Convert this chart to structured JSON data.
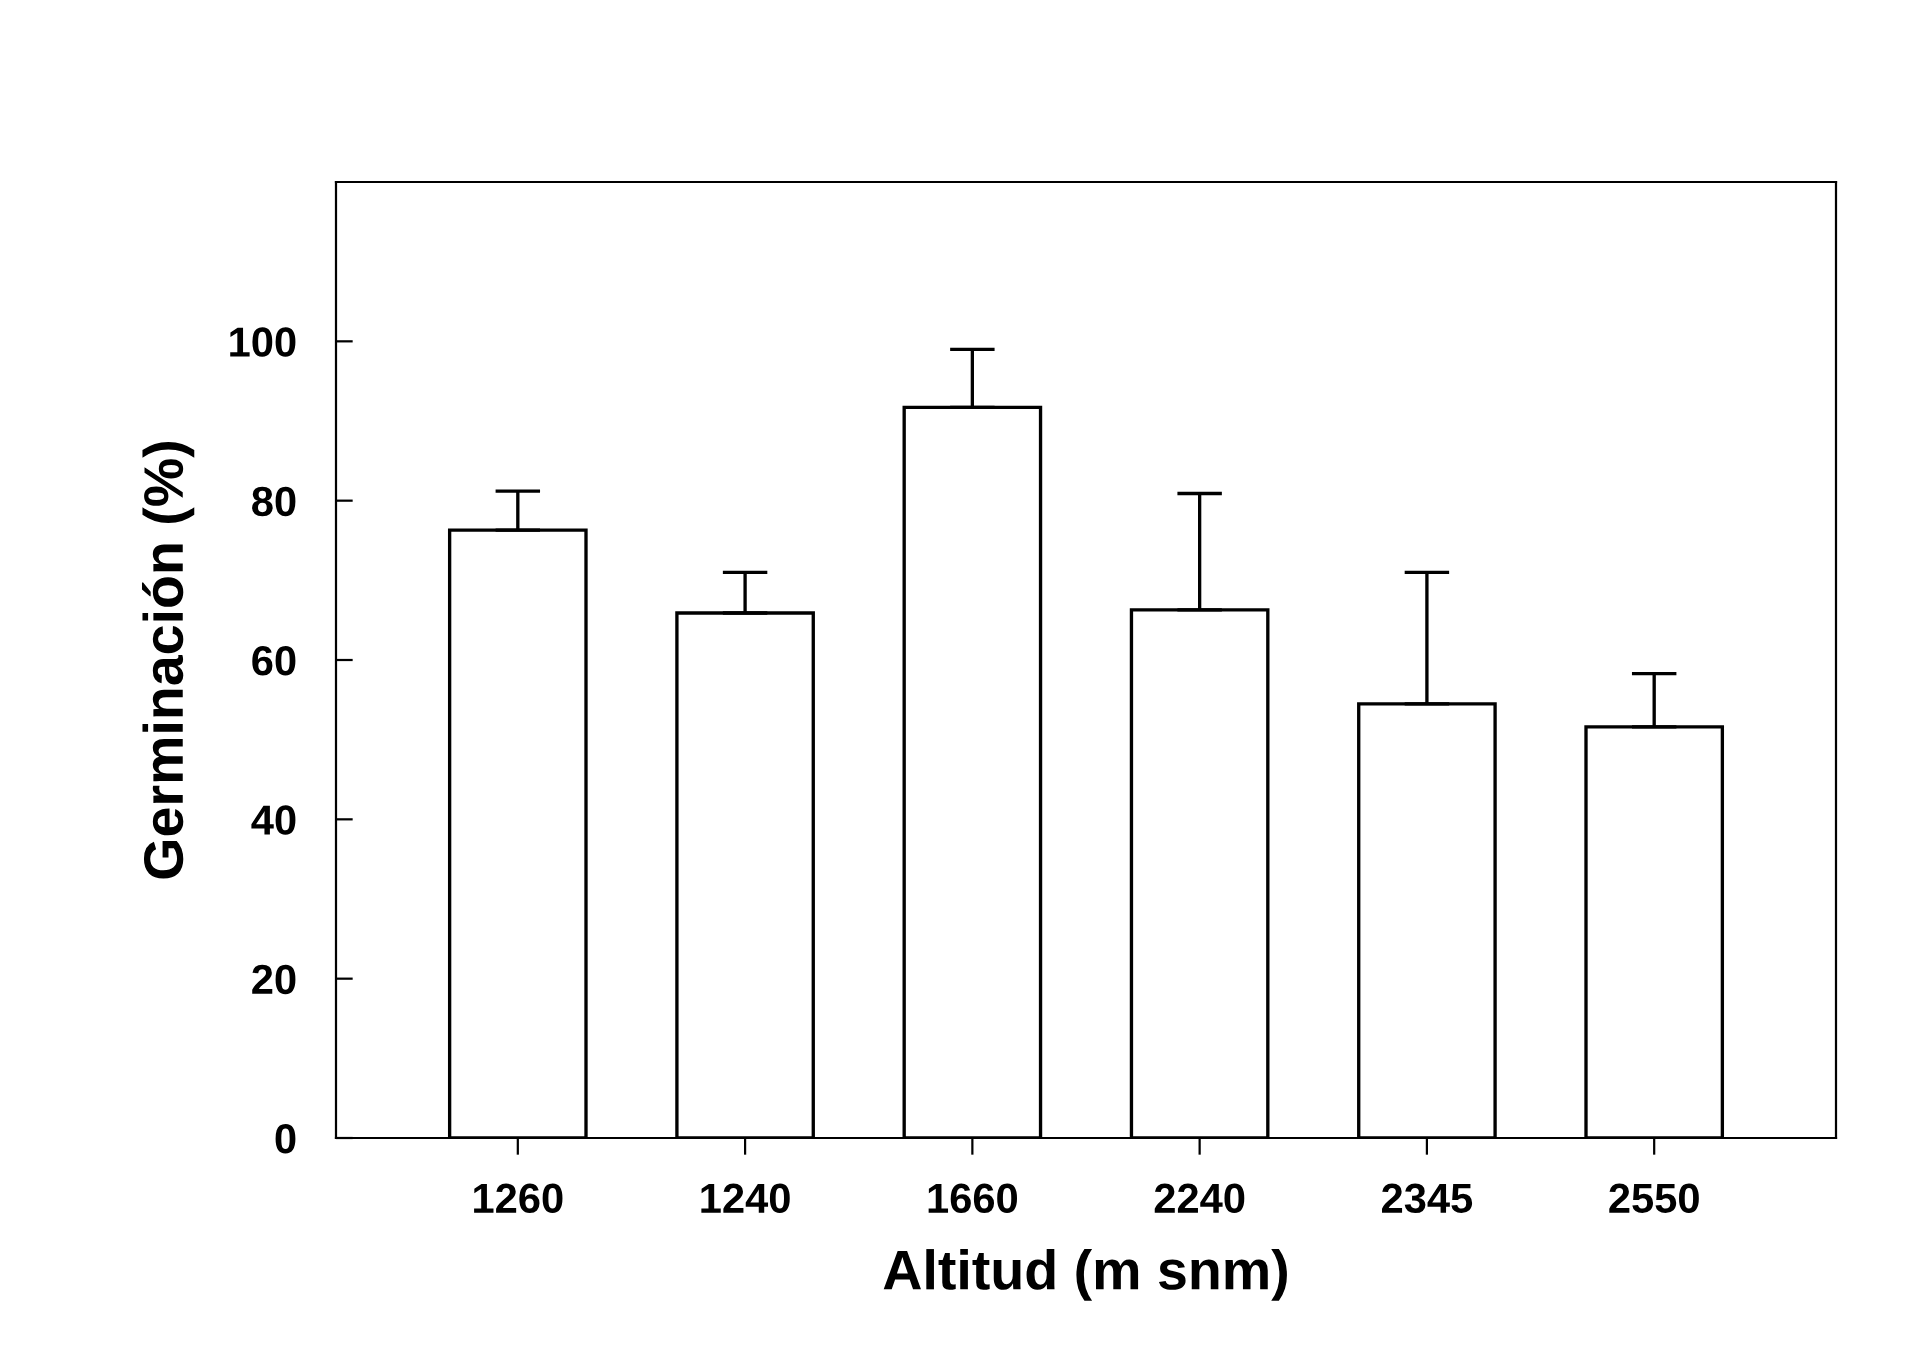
{
  "chart_data": {
    "type": "bar",
    "xlabel": "Altitud (m snm)",
    "ylabel": "Germinación (%)",
    "categories": [
      "1260",
      "1240",
      "1660",
      "2240",
      "2345",
      "2550"
    ],
    "values": [
      76.3,
      65.9,
      91.7,
      66.3,
      54.5,
      51.6
    ],
    "errors": [
      [
        76.3,
        81.2
      ],
      [
        65.9,
        71.0
      ],
      [
        91.7,
        99.0
      ],
      [
        66.3,
        80.9
      ],
      [
        54.5,
        71.0
      ],
      [
        51.6,
        58.3
      ]
    ],
    "color": "#ffffff",
    "ylim": [
      0,
      120
    ],
    "yticks": [
      0,
      20,
      40,
      60,
      80,
      100
    ],
    "grid": false,
    "legend": false
  }
}
